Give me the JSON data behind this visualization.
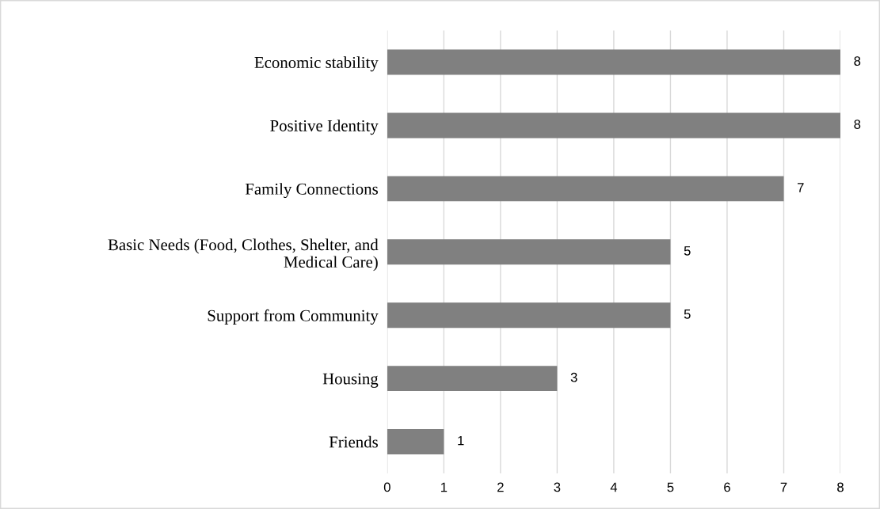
{
  "chart_data": {
    "type": "bar",
    "orientation": "horizontal",
    "categories": [
      "Economic stability",
      "Positive Identity",
      "Family Connections",
      "Basic Needs (Food, Clothes, Shelter, and\nMedical Care)",
      "Support from Community",
      "Housing",
      "Friends"
    ],
    "values": [
      8,
      8,
      7,
      5,
      5,
      3,
      1
    ],
    "color": "#808080",
    "xlim": [
      0,
      8
    ],
    "xticks": [
      0,
      1,
      2,
      3,
      4,
      5,
      6,
      7,
      8
    ],
    "grid": "x",
    "data_labels": true
  }
}
